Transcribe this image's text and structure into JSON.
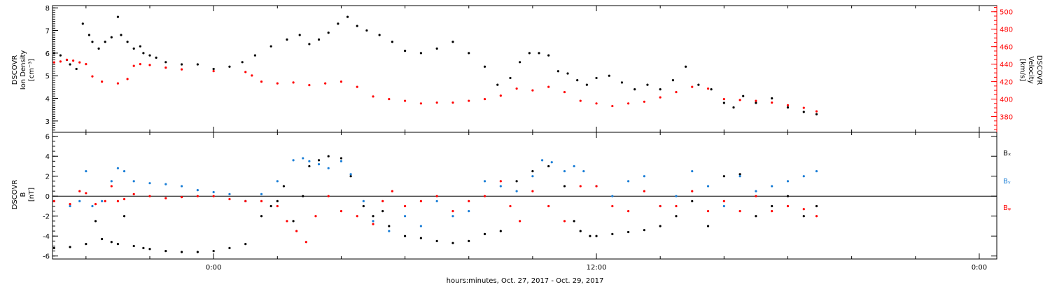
{
  "figure": {
    "xlabel": "hours:minutes, Oct. 27, 2017 - Oct. 29, 2017",
    "x_ticks": [
      {
        "hour": 0,
        "label": "0:00"
      },
      {
        "hour": 12,
        "label": "12:00"
      },
      {
        "hour": 24,
        "label": "0:00"
      }
    ]
  },
  "chart_data": [
    {
      "type": "scatter",
      "title": "",
      "x_unit": "hours since Oct. 28, 2017 00:00",
      "xlim": [
        -5.05,
        24.55
      ],
      "ylabel_left": [
        "DSCOVR",
        "Ion Density",
        "[cm⁻³]"
      ],
      "ylim_left": [
        2.5,
        8.1
      ],
      "yticks_left": [
        3,
        4,
        5,
        6,
        7,
        8
      ],
      "ylabel_right": [
        "DSCOVR",
        "Velocity",
        "[km/s]"
      ],
      "ylim_right": [
        362,
        507
      ],
      "yticks_right": [
        380,
        400,
        420,
        440,
        460,
        480,
        500
      ],
      "series": [
        {
          "name": "",
          "axis": "left",
          "color": "#000000",
          "x": [
            -5.0,
            -4.8,
            -4.6,
            -4.5,
            -4.3,
            -4.1,
            -3.9,
            -3.8,
            -3.6,
            -3.4,
            -3.2,
            -3.0,
            -2.9,
            -2.7,
            -2.5,
            -2.3,
            -2.2,
            -2.0,
            -1.8,
            -1.5,
            -1.0,
            -0.5,
            0.0,
            0.5,
            0.9,
            1.3,
            1.8,
            2.3,
            2.7,
            3.0,
            3.3,
            3.6,
            3.9,
            4.2,
            4.5,
            4.8,
            5.2,
            5.6,
            6.0,
            6.5,
            7.0,
            7.5,
            8.0,
            8.5,
            8.9,
            9.3,
            9.6,
            9.9,
            10.2,
            10.5,
            10.8,
            11.1,
            11.4,
            11.7,
            12.0,
            12.4,
            12.8,
            13.2,
            13.6,
            14.0,
            14.4,
            14.8,
            15.2,
            15.6,
            16.0,
            16.3,
            16.6,
            17.0,
            17.5,
            18.0,
            18.5,
            18.9
          ],
          "y": [
            6.0,
            5.9,
            5.7,
            5.5,
            5.3,
            7.3,
            6.8,
            6.5,
            6.2,
            6.5,
            6.7,
            7.6,
            6.8,
            6.5,
            6.2,
            6.3,
            6.0,
            5.9,
            5.8,
            5.6,
            5.5,
            5.5,
            5.3,
            5.4,
            5.6,
            5.9,
            6.3,
            6.6,
            6.8,
            6.4,
            6.6,
            6.9,
            7.3,
            7.6,
            7.2,
            7.0,
            6.8,
            6.5,
            6.1,
            6.0,
            6.2,
            6.5,
            6.0,
            5.4,
            4.6,
            4.9,
            5.6,
            6.0,
            6.0,
            5.9,
            5.2,
            5.1,
            4.8,
            4.6,
            4.9,
            5.0,
            4.7,
            4.4,
            4.6,
            4.4,
            4.8,
            5.4,
            4.6,
            4.4,
            3.8,
            3.6,
            4.1,
            3.8,
            4.0,
            3.6,
            3.4,
            3.3
          ]
        },
        {
          "name": "",
          "axis": "right",
          "color": "#ff0000",
          "x": [
            -5.0,
            -4.8,
            -4.6,
            -4.4,
            -4.2,
            -4.0,
            -3.8,
            -3.5,
            -3.0,
            -2.7,
            -2.5,
            -2.3,
            -2.0,
            -1.5,
            -1.0,
            0.0,
            1.0,
            1.2,
            1.5,
            2.0,
            2.5,
            3.0,
            3.5,
            4.0,
            4.5,
            5.0,
            5.5,
            6.0,
            6.5,
            7.0,
            7.5,
            8.0,
            8.5,
            9.0,
            9.5,
            10.0,
            10.5,
            11.0,
            11.5,
            12.0,
            12.5,
            13.0,
            13.5,
            14.0,
            14.5,
            15.0,
            15.5,
            16.0,
            16.5,
            17.0,
            17.5,
            18.0,
            18.5,
            18.9
          ],
          "y": [
            442,
            443,
            445,
            444,
            442,
            440,
            426,
            420,
            418,
            423,
            438,
            440,
            439,
            436,
            434,
            432,
            431,
            427,
            420,
            418,
            419,
            416,
            418,
            420,
            414,
            403,
            400,
            398,
            395,
            396,
            396,
            398,
            400,
            404,
            412,
            410,
            414,
            408,
            398,
            395,
            392,
            395,
            397,
            402,
            408,
            414,
            412,
            400,
            399,
            398,
            396,
            393,
            390,
            386
          ]
        }
      ]
    },
    {
      "type": "scatter",
      "title": "",
      "x_unit": "hours since Oct. 28, 2017 00:00",
      "xlim": [
        -5.05,
        24.55
      ],
      "ylabel": [
        "DSCOVR",
        "B",
        "[nT]"
      ],
      "ylim": [
        -6.3,
        6.4
      ],
      "yticks": [
        -6,
        -4,
        -2,
        0,
        2,
        4,
        6
      ],
      "zero_line": true,
      "legend_position": "right",
      "series": [
        {
          "name": "Bₓ",
          "color": "#000000",
          "x": [
            -5.0,
            -4.5,
            -4.0,
            -3.7,
            -3.5,
            -3.2,
            -3.0,
            -2.8,
            -2.5,
            -2.2,
            -2.0,
            -1.5,
            -1.0,
            -0.5,
            0.0,
            0.5,
            1.0,
            1.5,
            1.8,
            2.0,
            2.2,
            2.5,
            2.8,
            3.0,
            3.3,
            3.6,
            4.0,
            4.3,
            4.7,
            5.0,
            5.3,
            5.5,
            6.0,
            6.5,
            7.0,
            7.5,
            8.0,
            8.5,
            9.0,
            9.5,
            10.0,
            10.5,
            11.0,
            11.3,
            11.5,
            11.8,
            12.0,
            12.5,
            13.0,
            13.5,
            14.0,
            14.5,
            15.0,
            15.5,
            16.0,
            16.5,
            17.0,
            17.5,
            18.0,
            18.5,
            18.9
          ],
          "y": [
            -5.2,
            -5.1,
            -4.8,
            -2.5,
            -4.3,
            -4.6,
            -4.8,
            -2.0,
            -5.0,
            -5.2,
            -5.3,
            -5.5,
            -5.6,
            -5.6,
            -5.5,
            -5.2,
            -4.8,
            -2.0,
            -1.0,
            -0.5,
            1.0,
            -2.5,
            0.0,
            3.0,
            3.6,
            4.0,
            3.8,
            2.0,
            -1.0,
            -2.0,
            -1.5,
            -3.0,
            -4.0,
            -4.2,
            -4.5,
            -4.7,
            -4.5,
            -3.8,
            -3.5,
            1.5,
            2.5,
            3.0,
            1.0,
            -2.5,
            -3.5,
            -4.0,
            -4.0,
            -3.8,
            -3.6,
            -3.4,
            -3.0,
            -2.0,
            -0.5,
            -3.0,
            2.0,
            2.2,
            -2.0,
            -1.0,
            0.0,
            -2.0,
            -1.0
          ]
        },
        {
          "name": "Bᵧ",
          "color": "#1a7ed6",
          "x": [
            -5.0,
            -4.5,
            -4.2,
            -4.0,
            -3.8,
            -3.5,
            -3.2,
            -3.0,
            -2.8,
            -2.5,
            -2.0,
            -1.5,
            -1.0,
            -0.5,
            0.0,
            0.5,
            1.0,
            1.5,
            2.0,
            2.5,
            2.8,
            3.0,
            3.3,
            3.6,
            4.0,
            4.3,
            4.7,
            5.0,
            5.5,
            6.0,
            6.5,
            7.0,
            7.5,
            8.0,
            8.5,
            9.0,
            9.5,
            10.0,
            10.3,
            10.6,
            11.0,
            11.3,
            11.6,
            12.0,
            12.5,
            13.0,
            13.5,
            14.0,
            14.5,
            15.0,
            15.5,
            16.0,
            16.5,
            17.0,
            17.5,
            18.0,
            18.5,
            18.9
          ],
          "y": [
            -0.5,
            -1.0,
            -0.5,
            2.5,
            -1.0,
            -0.5,
            1.5,
            2.8,
            2.5,
            1.5,
            1.3,
            1.2,
            1.0,
            0.6,
            0.4,
            0.2,
            -0.5,
            0.2,
            1.5,
            3.6,
            3.8,
            3.5,
            3.2,
            2.8,
            3.5,
            2.2,
            -0.5,
            -2.5,
            -3.5,
            -2.0,
            -3.0,
            -0.5,
            -2.0,
            -1.5,
            1.5,
            1.0,
            0.5,
            2.0,
            3.6,
            3.4,
            2.5,
            3.0,
            2.5,
            1.0,
            0.0,
            1.5,
            2.0,
            -1.0,
            0.0,
            2.5,
            1.0,
            -1.0,
            2.0,
            0.5,
            1.0,
            1.5,
            2.0,
            2.5
          ]
        },
        {
          "name": "Bᵩ",
          "color": "#ff0000",
          "x": [
            -5.0,
            -4.5,
            -4.2,
            -4.0,
            -3.7,
            -3.4,
            -3.2,
            -3.0,
            -2.8,
            -2.5,
            -2.0,
            -1.5,
            -1.0,
            -0.5,
            0.0,
            0.5,
            1.0,
            1.5,
            2.0,
            2.3,
            2.6,
            2.9,
            3.2,
            3.6,
            4.0,
            4.5,
            5.0,
            5.3,
            5.6,
            6.0,
            6.5,
            7.0,
            7.5,
            8.0,
            8.5,
            9.0,
            9.3,
            9.6,
            10.0,
            10.5,
            11.0,
            11.5,
            12.0,
            12.5,
            13.0,
            13.5,
            14.0,
            14.5,
            15.0,
            15.5,
            16.0,
            16.5,
            17.0,
            17.5,
            18.0,
            18.5,
            18.9
          ],
          "y": [
            -0.5,
            -0.8,
            0.5,
            0.3,
            -0.8,
            -0.5,
            1.0,
            -0.5,
            -0.3,
            0.2,
            0.0,
            -0.2,
            -0.1,
            0.0,
            0.0,
            -0.3,
            -0.5,
            -0.5,
            -1.0,
            -2.5,
            -3.5,
            -4.6,
            -2.0,
            0.0,
            -1.5,
            -2.0,
            -2.8,
            -0.5,
            0.5,
            -1.0,
            -0.5,
            0.0,
            -1.5,
            -0.5,
            0.0,
            1.5,
            -1.0,
            -2.5,
            0.5,
            -1.0,
            -2.5,
            1.0,
            1.0,
            -1.0,
            -1.5,
            0.5,
            -1.0,
            -1.0,
            0.5,
            -1.5,
            -0.5,
            -1.5,
            0.0,
            -1.5,
            -1.0,
            -1.3,
            -2.0
          ]
        }
      ]
    }
  ]
}
